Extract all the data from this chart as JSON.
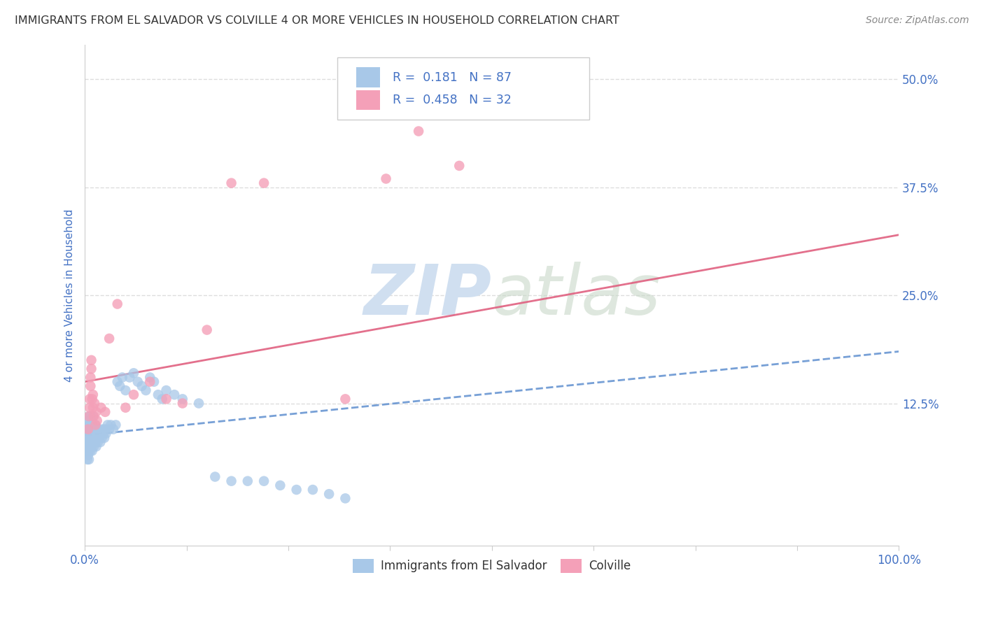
{
  "title": "IMMIGRANTS FROM EL SALVADOR VS COLVILLE 4 OR MORE VEHICLES IN HOUSEHOLD CORRELATION CHART",
  "source": "Source: ZipAtlas.com",
  "ylabel": "4 or more Vehicles in Household",
  "xlim": [
    0.0,
    1.0
  ],
  "ylim": [
    -0.04,
    0.54
  ],
  "ytick_labels": [
    "12.5%",
    "25.0%",
    "37.5%",
    "50.0%"
  ],
  "ytick_positions": [
    0.125,
    0.25,
    0.375,
    0.5
  ],
  "legend_labels": [
    "Immigrants from El Salvador",
    "Colville"
  ],
  "blue_R": "0.181",
  "blue_N": "87",
  "pink_R": "0.458",
  "pink_N": "32",
  "blue_color": "#a8c8e8",
  "pink_color": "#f4a0b8",
  "trend_blue_color": "#5588cc",
  "trend_pink_color": "#e06080",
  "title_color": "#333333",
  "source_color": "#888888",
  "axis_label_color": "#4472c4",
  "legend_r_color": "#4472c4",
  "watermark_color": "#d0dff0",
  "background_color": "#ffffff",
  "grid_color": "#dddddd",
  "blue_x": [
    0.001,
    0.002,
    0.002,
    0.003,
    0.003,
    0.003,
    0.004,
    0.004,
    0.004,
    0.004,
    0.005,
    0.005,
    0.005,
    0.005,
    0.005,
    0.006,
    0.006,
    0.006,
    0.006,
    0.007,
    0.007,
    0.007,
    0.007,
    0.008,
    0.008,
    0.008,
    0.008,
    0.009,
    0.009,
    0.009,
    0.01,
    0.01,
    0.01,
    0.011,
    0.011,
    0.011,
    0.012,
    0.012,
    0.013,
    0.013,
    0.014,
    0.014,
    0.015,
    0.015,
    0.016,
    0.016,
    0.017,
    0.018,
    0.019,
    0.02,
    0.021,
    0.022,
    0.023,
    0.024,
    0.025,
    0.026,
    0.028,
    0.03,
    0.032,
    0.035,
    0.038,
    0.04,
    0.043,
    0.046,
    0.05,
    0.055,
    0.06,
    0.065,
    0.07,
    0.075,
    0.08,
    0.085,
    0.09,
    0.095,
    0.1,
    0.11,
    0.12,
    0.14,
    0.16,
    0.18,
    0.2,
    0.22,
    0.24,
    0.26,
    0.28,
    0.3,
    0.32
  ],
  "blue_y": [
    0.075,
    0.08,
    0.07,
    0.09,
    0.085,
    0.06,
    0.095,
    0.1,
    0.075,
    0.065,
    0.08,
    0.105,
    0.11,
    0.07,
    0.06,
    0.095,
    0.085,
    0.1,
    0.075,
    0.09,
    0.11,
    0.08,
    0.07,
    0.095,
    0.085,
    0.105,
    0.075,
    0.09,
    0.1,
    0.07,
    0.085,
    0.095,
    0.11,
    0.08,
    0.09,
    0.075,
    0.095,
    0.085,
    0.1,
    0.08,
    0.09,
    0.075,
    0.085,
    0.095,
    0.08,
    0.09,
    0.085,
    0.095,
    0.08,
    0.09,
    0.085,
    0.095,
    0.09,
    0.085,
    0.095,
    0.09,
    0.1,
    0.095,
    0.1,
    0.095,
    0.1,
    0.15,
    0.145,
    0.155,
    0.14,
    0.155,
    0.16,
    0.15,
    0.145,
    0.14,
    0.155,
    0.15,
    0.135,
    0.13,
    0.14,
    0.135,
    0.13,
    0.125,
    0.04,
    0.035,
    0.035,
    0.035,
    0.03,
    0.025,
    0.025,
    0.02,
    0.015
  ],
  "pink_x": [
    0.004,
    0.005,
    0.006,
    0.006,
    0.007,
    0.007,
    0.008,
    0.008,
    0.009,
    0.01,
    0.01,
    0.011,
    0.012,
    0.013,
    0.014,
    0.015,
    0.02,
    0.025,
    0.03,
    0.04,
    0.05,
    0.06,
    0.08,
    0.1,
    0.12,
    0.15,
    0.18,
    0.22,
    0.32,
    0.37,
    0.41,
    0.46
  ],
  "pink_y": [
    0.095,
    0.11,
    0.13,
    0.12,
    0.145,
    0.155,
    0.165,
    0.175,
    0.13,
    0.12,
    0.135,
    0.11,
    0.125,
    0.1,
    0.115,
    0.105,
    0.12,
    0.115,
    0.2,
    0.24,
    0.12,
    0.135,
    0.15,
    0.13,
    0.125,
    0.21,
    0.38,
    0.38,
    0.13,
    0.385,
    0.44,
    0.4
  ],
  "pink_trend_x0": 0.0,
  "pink_trend_y0": 0.15,
  "pink_trend_x1": 1.0,
  "pink_trend_y1": 0.32,
  "blue_trend_x0": 0.0,
  "blue_trend_y0": 0.088,
  "blue_trend_x1": 1.0,
  "blue_trend_y1": 0.185
}
